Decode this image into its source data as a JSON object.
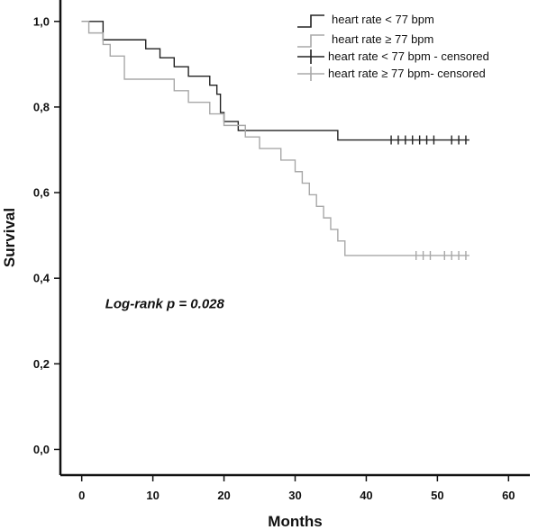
{
  "chart_data": {
    "type": "line",
    "xlabel": "Months",
    "ylabel": "Survival",
    "xlim": [
      -3,
      63
    ],
    "ylim": [
      -0.06,
      1.05
    ],
    "x_ticks": [
      0,
      10,
      20,
      30,
      40,
      50,
      60
    ],
    "x_tick_labels": [
      "0",
      "10",
      "20",
      "30",
      "40",
      "50",
      "60"
    ],
    "y_ticks": [
      0.0,
      0.2,
      0.4,
      0.6,
      0.8,
      1.0
    ],
    "y_tick_labels": [
      "0,0",
      "0,2",
      "0,4",
      "0,6",
      "0,8",
      "1,0"
    ],
    "grid": false,
    "legend_position": "top-right",
    "annotation": "Log-rank p = 0.028",
    "series": [
      {
        "name": "heart rate < 77 bpm",
        "censored_name": "heart rate < 77 bpm - censored",
        "color": "#222222",
        "steps": [
          [
            0,
            1.0
          ],
          [
            3,
            0.957
          ],
          [
            9,
            0.936
          ],
          [
            11,
            0.915
          ],
          [
            13,
            0.894
          ],
          [
            15,
            0.872
          ],
          [
            18,
            0.851
          ],
          [
            19,
            0.83
          ],
          [
            19.5,
            0.787
          ],
          [
            20,
            0.766
          ],
          [
            22,
            0.745
          ],
          [
            36,
            0.723
          ],
          [
            54.5,
            0.723
          ]
        ],
        "censored_x": [
          43.5,
          44.5,
          45.5,
          46.5,
          47.5,
          48.5,
          49.5,
          52,
          53,
          54
        ]
      },
      {
        "name": "heart rate ≥ 77 bpm",
        "censored_name": "heart rate ≥ 77 bpm- censored",
        "color": "#a8a8a8",
        "steps": [
          [
            0,
            1.0
          ],
          [
            1,
            0.973
          ],
          [
            3,
            0.946
          ],
          [
            4,
            0.919
          ],
          [
            6,
            0.865
          ],
          [
            13,
            0.838
          ],
          [
            15,
            0.811
          ],
          [
            18,
            0.784
          ],
          [
            20,
            0.757
          ],
          [
            23,
            0.73
          ],
          [
            25,
            0.703
          ],
          [
            28,
            0.676
          ],
          [
            30,
            0.649
          ],
          [
            31,
            0.622
          ],
          [
            32,
            0.595
          ],
          [
            33,
            0.568
          ],
          [
            34,
            0.541
          ],
          [
            35,
            0.514
          ],
          [
            36,
            0.487
          ],
          [
            37,
            0.453
          ],
          [
            54.5,
            0.453
          ]
        ],
        "censored_x": [
          47,
          48,
          49,
          51,
          52,
          53,
          54
        ]
      }
    ]
  }
}
